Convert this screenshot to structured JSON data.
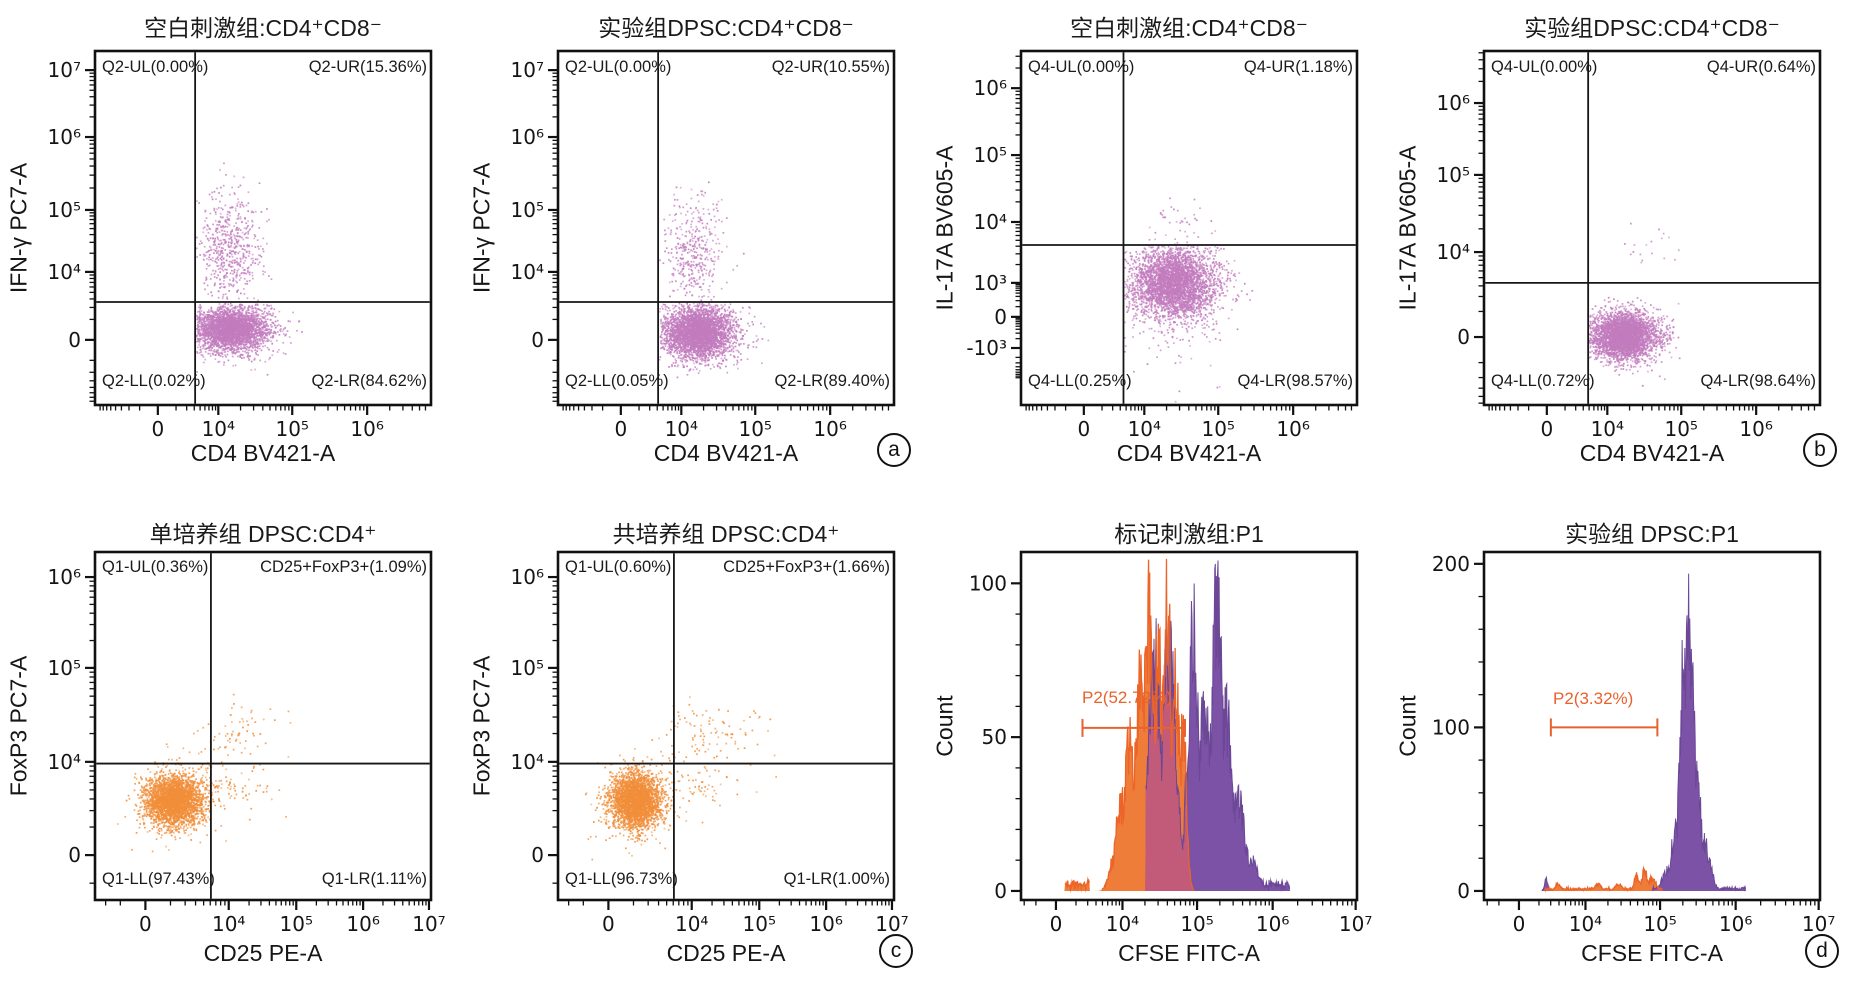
{
  "figure": {
    "background": "#ffffff",
    "axis_color": "#151515",
    "gate_color": "#e8622d"
  },
  "chart_data": [
    {
      "type": "scatter",
      "title": "空白刺激组:CD4⁺CD8⁻",
      "xlabel": "CD4 BV421-A",
      "ylabel": "IFN-γ PC7-A",
      "x_ticks": [
        [
          "0",
          0.187
        ],
        [
          "10⁴",
          0.367
        ],
        [
          "10⁵",
          0.587
        ],
        [
          "10⁶",
          0.81
        ]
      ],
      "y_ticks": [
        [
          "10⁷",
          0.054
        ],
        [
          "10⁶",
          0.243
        ],
        [
          "10⁵",
          0.449
        ],
        [
          "10⁴",
          0.624
        ],
        [
          "0",
          0.816
        ]
      ],
      "gate": {
        "x": 0.298,
        "y": 0.709
      },
      "labels": {
        "ul": "Q2-UL(0.00%)",
        "ur": "Q2-UR(15.36%)",
        "ll": "Q2-LL(0.02%)",
        "lr": "Q2-LR(84.62%)"
      },
      "dot_color": "#c27cbe",
      "clusters": [
        {
          "cx": 0.405,
          "cy": 0.785,
          "sx": 0.055,
          "sy": 0.03,
          "n": 2800,
          "xmin": 0.302,
          "ymin": 0.713,
          "ymax": 0.895
        },
        {
          "cx": 0.4,
          "cy": 0.56,
          "sx": 0.048,
          "sy": 0.078,
          "n": 560,
          "xmin": 0.302,
          "ymax": 0.705
        },
        {
          "cx": 0.43,
          "cy": 0.79,
          "sx": 0.075,
          "sy": 0.045,
          "n": 250,
          "xmin": 0.302,
          "ymin": 0.713
        }
      ],
      "corner_letter": null
    },
    {
      "type": "scatter",
      "title": "实验组DPSC:CD4⁺CD8⁻",
      "xlabel": "CD4 BV421-A",
      "ylabel": "IFN-γ PC7-A",
      "x_ticks": [
        [
          "0",
          0.187
        ],
        [
          "10⁴",
          0.367
        ],
        [
          "10⁵",
          0.587
        ],
        [
          "10⁶",
          0.81
        ]
      ],
      "y_ticks": [
        [
          "10⁷",
          0.054
        ],
        [
          "10⁶",
          0.243
        ],
        [
          "10⁵",
          0.449
        ],
        [
          "10⁴",
          0.624
        ],
        [
          "0",
          0.816
        ]
      ],
      "gate": {
        "x": 0.298,
        "y": 0.709
      },
      "labels": {
        "ul": "Q2-UL(0.00%)",
        "ur": "Q2-UR(10.55%)",
        "ll": "Q2-LL(0.05%)",
        "lr": "Q2-LR(89.40%)"
      },
      "dot_color": "#c27cbe",
      "clusters": [
        {
          "cx": 0.415,
          "cy": 0.795,
          "sx": 0.05,
          "sy": 0.036,
          "n": 3200,
          "xmin": 0.302,
          "ymin": 0.713,
          "ymax": 0.905
        },
        {
          "cx": 0.405,
          "cy": 0.565,
          "sx": 0.046,
          "sy": 0.075,
          "n": 380,
          "xmin": 0.302,
          "ymax": 0.705
        },
        {
          "cx": 0.44,
          "cy": 0.8,
          "sx": 0.07,
          "sy": 0.05,
          "n": 220,
          "xmin": 0.302,
          "ymin": 0.713
        }
      ],
      "corner_letter": "a"
    },
    {
      "type": "scatter",
      "title": "空白刺激组:CD4⁺CD8⁻",
      "xlabel": "CD4 BV421-A",
      "ylabel": "IL-17A BV605-A",
      "x_ticks": [
        [
          "0",
          0.187
        ],
        [
          "10⁴",
          0.367
        ],
        [
          "10⁵",
          0.587
        ],
        [
          "10⁶",
          0.81
        ]
      ],
      "y_ticks": [
        [
          "10⁶",
          0.105
        ],
        [
          "10⁵",
          0.294
        ],
        [
          "10⁴",
          0.483
        ],
        [
          "10³",
          0.655
        ],
        [
          "0",
          0.751
        ],
        [
          "-10³",
          0.839
        ]
      ],
      "gate": {
        "x": 0.305,
        "y": 0.548
      },
      "labels": {
        "ul": "Q4-UL(0.00%)",
        "ur": "Q4-UR(1.18%)",
        "ll": "Q4-LL(0.25%)",
        "lr": "Q4-LR(98.57%)"
      },
      "dot_color": "#c27cbe",
      "clusters": [
        {
          "cx": 0.455,
          "cy": 0.655,
          "sx": 0.062,
          "sy": 0.052,
          "n": 3400,
          "xmin": 0.307,
          "ymin": 0.552
        },
        {
          "cx": 0.47,
          "cy": 0.49,
          "sx": 0.045,
          "sy": 0.035,
          "n": 45,
          "xmin": 0.35
        },
        {
          "cx": 0.47,
          "cy": 0.7,
          "sx": 0.09,
          "sy": 0.09,
          "n": 180,
          "xmin": 0.307,
          "ymin": 0.552
        }
      ],
      "corner_letter": null
    },
    {
      "type": "scatter",
      "title": "实验组DPSC:CD4⁺CD8⁻",
      "xlabel": "CD4 BV421-A",
      "ylabel": "IL-17A BV605-A",
      "x_ticks": [
        [
          "0",
          0.187
        ],
        [
          "10⁴",
          0.367
        ],
        [
          "10⁵",
          0.587
        ],
        [
          "10⁶",
          0.81
        ]
      ],
      "y_ticks": [
        [
          "10⁶",
          0.147
        ],
        [
          "10⁵",
          0.35
        ],
        [
          "10⁴",
          0.568
        ],
        [
          "0",
          0.808
        ]
      ],
      "gate": {
        "x": 0.31,
        "y": 0.655
      },
      "labels": {
        "ul": "Q4-UL(0.00%)",
        "ur": "Q4-UR(0.64%)",
        "ll": "Q4-LL(0.72%)",
        "lr": "Q4-LR(98.64%)"
      },
      "dot_color": "#c27cbe",
      "clusters": [
        {
          "cx": 0.415,
          "cy": 0.805,
          "sx": 0.05,
          "sy": 0.032,
          "n": 3300,
          "xmin": 0.312,
          "ymin": 0.66
        },
        {
          "cx": 0.5,
          "cy": 0.55,
          "sx": 0.05,
          "sy": 0.06,
          "n": 18,
          "xmin": 0.35
        },
        {
          "cx": 0.44,
          "cy": 0.81,
          "sx": 0.07,
          "sy": 0.05,
          "n": 150,
          "xmin": 0.312,
          "ymin": 0.66
        }
      ],
      "corner_letter": "b"
    },
    {
      "type": "scatter",
      "title": "单培养组 DPSC:CD4⁺",
      "xlabel": "CD25 PE-A",
      "ylabel": "FoxP3 PC7-A",
      "x_ticks": [
        [
          "0",
          0.15
        ],
        [
          "10⁴",
          0.398
        ],
        [
          "10⁵",
          0.599
        ],
        [
          "10⁶",
          0.798
        ],
        [
          "10⁷",
          0.994
        ]
      ],
      "y_ticks": [
        [
          "10⁶",
          0.072
        ],
        [
          "10⁵",
          0.333
        ],
        [
          "10⁴",
          0.603
        ],
        [
          "0",
          0.871
        ]
      ],
      "gate": {
        "x": 0.345,
        "y": 0.608
      },
      "labels": {
        "ul": "Q1-UL(0.36%)",
        "ur": "CD25+FoxP3+(1.09%)",
        "ll": "Q1-LL(97.43%)",
        "lr": "Q1-LR(1.11%)"
      },
      "dot_color": "#f18e3a",
      "clusters": [
        {
          "cx": 0.235,
          "cy": 0.715,
          "sx": 0.042,
          "sy": 0.036,
          "n": 3000
        },
        {
          "cx": 0.42,
          "cy": 0.525,
          "sx": 0.062,
          "sy": 0.048,
          "n": 75
        },
        {
          "cx": 0.42,
          "cy": 0.675,
          "sx": 0.07,
          "sy": 0.035,
          "n": 60,
          "xmin": 0.3,
          "ymin": 0.615
        },
        {
          "cx": 0.25,
          "cy": 0.715,
          "sx": 0.07,
          "sy": 0.06,
          "n": 150
        }
      ],
      "corner_letter": null
    },
    {
      "type": "scatter",
      "title": "共培养组 DPSC:CD4⁺",
      "xlabel": "CD25 PE-A",
      "ylabel": "FoxP3 PC7-A",
      "x_ticks": [
        [
          "0",
          0.15
        ],
        [
          "10⁴",
          0.398
        ],
        [
          "10⁵",
          0.599
        ],
        [
          "10⁶",
          0.798
        ],
        [
          "10⁷",
          0.994
        ]
      ],
      "y_ticks": [
        [
          "10⁶",
          0.072
        ],
        [
          "10⁵",
          0.333
        ],
        [
          "10⁴",
          0.603
        ],
        [
          "0",
          0.871
        ]
      ],
      "gate": {
        "x": 0.345,
        "y": 0.608
      },
      "labels": {
        "ul": "Q1-UL(0.60%)",
        "ur": "CD25+FoxP3+(1.66%)",
        "ll": "Q1-LL(96.73%)",
        "lr": "Q1-LR(1.00%)"
      },
      "dot_color": "#f18e3a",
      "clusters": [
        {
          "cx": 0.23,
          "cy": 0.715,
          "sx": 0.038,
          "sy": 0.04,
          "n": 2900
        },
        {
          "cx": 0.45,
          "cy": 0.52,
          "sx": 0.08,
          "sy": 0.05,
          "n": 110
        },
        {
          "cx": 0.43,
          "cy": 0.67,
          "sx": 0.08,
          "sy": 0.04,
          "n": 60,
          "xmin": 0.3,
          "ymin": 0.615
        },
        {
          "cx": 0.25,
          "cy": 0.72,
          "sx": 0.065,
          "sy": 0.06,
          "n": 140
        }
      ],
      "corner_letter": "c"
    },
    {
      "type": "histogram",
      "title": "标记刺激组:P1",
      "xlabel": "CFSE FITC-A",
      "ylabel": "Count",
      "x_ticks": [
        [
          "0",
          0.104
        ],
        [
          "10⁴",
          0.302
        ],
        [
          "10⁵",
          0.524
        ],
        [
          "10⁶",
          0.749
        ],
        [
          "10⁷",
          0.996
        ]
      ],
      "y_ticks": [
        [
          "100",
          100
        ],
        [
          "50",
          50
        ],
        [
          "0",
          0
        ]
      ],
      "y_minor_step": 10,
      "y_scale": {
        "zero_frac": 0.974,
        "frac_per_count": 0.00884
      },
      "series": [
        {
          "color": "#ee7d3a",
          "stroke": "#ec6428",
          "peaks": [
            [
              0.379,
              90,
              0.012
            ],
            [
              0.435,
              90,
              0.012
            ],
            [
              0.408,
              70,
              0.018
            ],
            [
              0.355,
              68,
              0.016
            ],
            [
              0.325,
              45,
              0.018
            ],
            [
              0.3,
              28,
              0.018
            ],
            [
              0.46,
              68,
              0.014
            ],
            [
              0.482,
              50,
              0.01
            ],
            [
              0.28,
              12,
              0.015
            ]
          ],
          "range": [
            0.205,
            0.53
          ],
          "floors": [
            [
              0.13,
              0.205,
              2.5
            ]
          ]
        },
        {
          "color": "#7b52a6",
          "stroke": "#6b4796",
          "peaks": [
            [
              0.385,
              55,
              0.014
            ],
            [
              0.4,
              70,
              0.02
            ],
            [
              0.44,
              72,
              0.022
            ],
            [
              0.512,
              80,
              0.016
            ],
            [
              0.545,
              55,
              0.02
            ],
            [
              0.583,
              88,
              0.018
            ],
            [
              0.61,
              55,
              0.02
            ],
            [
              0.645,
              28,
              0.022
            ],
            [
              0.685,
              10,
              0.02
            ]
          ],
          "range": [
            0.37,
            0.8
          ],
          "floors": [
            [
              0.7,
              0.8,
              2.5
            ]
          ]
        }
      ],
      "overlap_color": "#c25b79",
      "gate": {
        "label": "P2(52.72%)",
        "x0": 0.183,
        "x1": 0.488,
        "count": 53
      },
      "corner_letter": null
    },
    {
      "type": "histogram",
      "title": "实验组 DPSC:P1",
      "xlabel": "CFSE FITC-A",
      "ylabel": "Count",
      "x_ticks": [
        [
          "0",
          0.104
        ],
        [
          "10⁴",
          0.302
        ],
        [
          "10⁵",
          0.524
        ],
        [
          "10⁶",
          0.749
        ],
        [
          "10⁷",
          0.996
        ]
      ],
      "y_ticks": [
        [
          "200",
          200
        ],
        [
          "100",
          100
        ],
        [
          "0",
          0
        ]
      ],
      "y_minor_step": 20,
      "y_scale": {
        "zero_frac": 0.974,
        "frac_per_count": 0.0047
      },
      "series": [
        {
          "color": "#ee7d3a",
          "stroke": "#ec6428",
          "peaks": [
            [
              0.455,
              9,
              0.008
            ],
            [
              0.478,
              12,
              0.008
            ],
            [
              0.5,
              7,
              0.012
            ],
            [
              0.34,
              4,
              0.01
            ],
            [
              0.4,
              4,
              0.01
            ],
            [
              0.22,
              4,
              0.008
            ]
          ],
          "range": [
            0.17,
            0.545
          ],
          "floors": [
            [
              0.18,
              0.53,
              1.5
            ]
          ]
        },
        {
          "color": "#7b52a6",
          "stroke": "#6b4796",
          "peaks": [
            [
              0.607,
              170,
              0.01
            ],
            [
              0.594,
              130,
              0.012
            ],
            [
              0.618,
              120,
              0.012
            ],
            [
              0.632,
              70,
              0.014
            ],
            [
              0.655,
              28,
              0.018
            ],
            [
              0.57,
              35,
              0.014
            ],
            [
              0.545,
              12,
              0.015
            ],
            [
              0.185,
              7,
              0.005
            ]
          ],
          "range": [
            0.16,
            0.83
          ],
          "floors": [
            [
              0.5,
              0.78,
              2.0
            ]
          ]
        }
      ],
      "overlap_color": "#c25b79",
      "gate": {
        "label": "P2(3.32%)",
        "x0": 0.199,
        "x1": 0.516,
        "count": 100
      },
      "corner_letter": "d"
    }
  ]
}
